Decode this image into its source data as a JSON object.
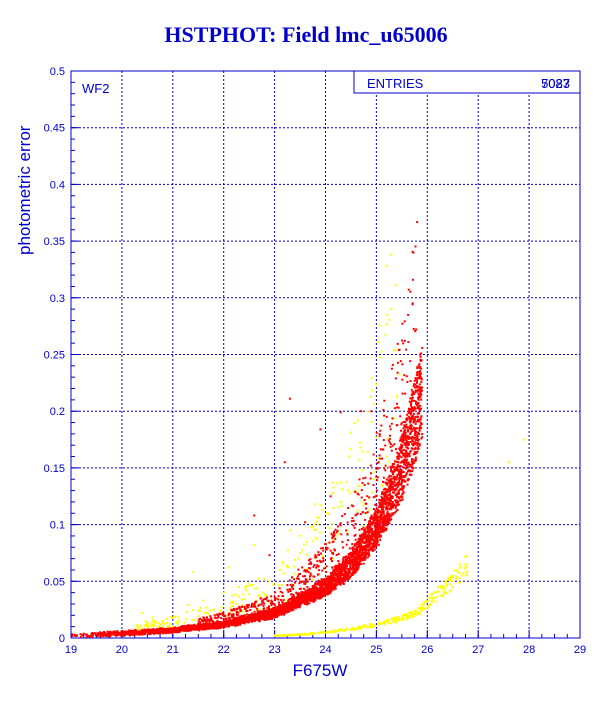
{
  "chart_data": {
    "type": "scatter",
    "title": "HSTPHOT: Field lmc_u65006",
    "xlabel": "F675W",
    "ylabel": "photometric error",
    "panel_label": "WF2",
    "stats_box": {
      "label": "ENTRIES",
      "value": "5083",
      "overprinted_value": "7027"
    },
    "xlim": [
      19,
      29
    ],
    "ylim": [
      0,
      0.5
    ],
    "x_ticks": [
      "19",
      "20",
      "21",
      "22",
      "23",
      "24",
      "25",
      "26",
      "27",
      "28",
      "29"
    ],
    "y_ticks": [
      "0",
      "0.05",
      "0.1",
      "0.15",
      "0.2",
      "0.25",
      "0.3",
      "0.35",
      "0.4",
      "0.45",
      "0.5"
    ],
    "grid": true,
    "colors": {
      "axes": "#0000cc",
      "grid": "#0000cc",
      "title": "#0000cc"
    },
    "series": [
      {
        "color": "#ff0000",
        "trend": {
          "x": [
            19.0,
            20.0,
            21.0,
            22.0,
            23.0,
            24.0,
            24.5,
            25.0,
            25.5,
            25.9
          ],
          "y": [
            0.002,
            0.004,
            0.007,
            0.012,
            0.022,
            0.045,
            0.065,
            0.097,
            0.15,
            0.215
          ]
        },
        "outliers": {
          "x": [
            23.3,
            23.9,
            24.3,
            24.7,
            24.9,
            23.2,
            22.6,
            23.6,
            24.1,
            22.9
          ],
          "y": [
            0.211,
            0.184,
            0.199,
            0.2,
            0.2,
            0.155,
            0.108,
            0.102,
            0.125,
            0.073
          ]
        }
      },
      {
        "color": "#ffff00",
        "trend": {
          "x": [
            23.0,
            23.5,
            24.0,
            24.5,
            25.0,
            25.3,
            25.8,
            26.1,
            26.5,
            26.8
          ],
          "y": [
            0.002,
            0.003,
            0.005,
            0.008,
            0.012,
            0.015,
            0.022,
            0.035,
            0.05,
            0.065
          ]
        },
        "outliers": {
          "x": [
            20.4,
            20.6,
            20.8,
            21.1,
            21.3,
            21.6,
            21.8,
            22.0,
            22.3,
            22.5,
            22.8,
            23.1,
            23.5,
            24.2,
            24.8,
            25.2,
            22.1,
            23.3,
            24.6,
            27.6,
            27.9,
            21.4,
            22.6,
            23.8
          ],
          "y": [
            0.022,
            0.018,
            0.015,
            0.012,
            0.029,
            0.033,
            0.025,
            0.04,
            0.045,
            0.048,
            0.052,
            0.06,
            0.075,
            0.09,
            0.11,
            0.16,
            0.062,
            0.095,
            0.13,
            0.155,
            0.175,
            0.058,
            0.082,
            0.118
          ]
        }
      }
    ]
  }
}
